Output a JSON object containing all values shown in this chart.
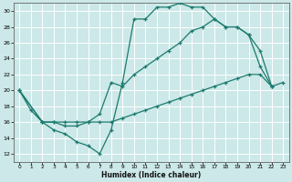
{
  "xlabel": "Humidex (Indice chaleur)",
  "bg_color": "#cce8e8",
  "grid_color": "#ffffff",
  "line_color": "#1a7a6e",
  "xlim": [
    -0.5,
    23.5
  ],
  "ylim": [
    11,
    31
  ],
  "xticks": [
    0,
    1,
    2,
    3,
    4,
    5,
    6,
    7,
    8,
    9,
    10,
    11,
    12,
    13,
    14,
    15,
    16,
    17,
    18,
    19,
    20,
    21,
    22,
    23
  ],
  "yticks": [
    12,
    14,
    16,
    18,
    20,
    22,
    24,
    26,
    28,
    30
  ],
  "line1_x": [
    0,
    1,
    2,
    3,
    4,
    5,
    6,
    7,
    8,
    9,
    10,
    11,
    12,
    13,
    14,
    15,
    16,
    17,
    18,
    19,
    20,
    21,
    22
  ],
  "line1_y": [
    20,
    17.5,
    16,
    15,
    14.5,
    13.5,
    13,
    12,
    15,
    21,
    29,
    29,
    30.5,
    30.5,
    31,
    30.5,
    30.5,
    29,
    28,
    28,
    27,
    23,
    20.5
  ],
  "line2_x": [
    0,
    2,
    3,
    4,
    5,
    6,
    7,
    8,
    9,
    10,
    11,
    12,
    13,
    14,
    15,
    16,
    17,
    18,
    19,
    20,
    21,
    22
  ],
  "line2_y": [
    20,
    16,
    16,
    15.5,
    15.5,
    16,
    17,
    21,
    20.5,
    22,
    23,
    24,
    25,
    26,
    27.5,
    28,
    29,
    28,
    28,
    27,
    25,
    20.5
  ],
  "line3_x": [
    0,
    2,
    3,
    4,
    5,
    6,
    7,
    8,
    9,
    10,
    11,
    12,
    13,
    14,
    15,
    16,
    17,
    18,
    19,
    20,
    21,
    22,
    23
  ],
  "line3_y": [
    20,
    16,
    16,
    16,
    16,
    16,
    16,
    16,
    16.5,
    17,
    17.5,
    18,
    18.5,
    19,
    19.5,
    20,
    20.5,
    21,
    21.5,
    22,
    22,
    20.5,
    21
  ]
}
